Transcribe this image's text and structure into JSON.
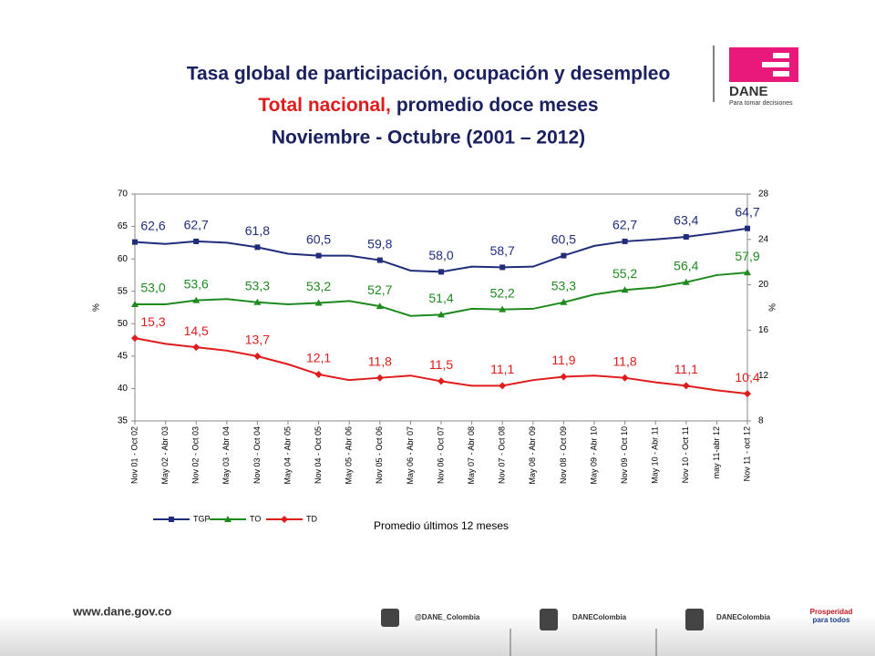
{
  "header": {
    "logo_text": "DANE",
    "logo_tagline": "Para tomar decisiones"
  },
  "chart_data": {
    "type": "line",
    "title": "Tasa global de participación, ocupación y desempleo",
    "subtitle_highlight": "Total nacional,",
    "subtitle": "promedio doce meses",
    "period": "Noviembre - Octubre (2001 – 2012)",
    "categories": [
      "Nov 01 - Oct 02",
      "May 02 - Abr 03",
      "Nov 02 - Oct 03",
      "May 03 - Abr 04",
      "Nov 03 - Oct 04",
      "May 04 - Abr 05",
      "Nov 04 - Oct 05",
      "May 05 - Abr 06",
      "Nov 05 - Oct 06",
      "May 06 - Abr 07",
      "Nov 06 - Oct 07",
      "May 07 - Abr 08",
      "Nov 07 - Oct 08",
      "May 08 - Abr 09",
      "Nov 08 - Oct 09",
      "May 09 - Abr 10",
      "Nov 09 - Oct 10",
      "May 10 - Abr 11",
      "Nov 10 - Oct 11",
      "may 11-abr 12",
      "Nov 11 - oct 12"
    ],
    "xlabel": "Promedio últimos 12 meses",
    "ylabel": "%",
    "y2label": "%",
    "ylim": [
      35,
      70
    ],
    "yticks": [
      35,
      40,
      45,
      50,
      55,
      60,
      65,
      70
    ],
    "y2lim": [
      8,
      28
    ],
    "y2ticks": [
      8,
      12,
      16,
      20,
      24,
      28
    ],
    "series": [
      {
        "name": "TGP",
        "color": "#1f2d7a",
        "marker": "square",
        "values": [
          62.6,
          62.3,
          62.7,
          62.5,
          61.8,
          60.8,
          60.5,
          60.5,
          59.8,
          58.2,
          58.0,
          58.8,
          58.7,
          58.8,
          60.5,
          62.0,
          62.7,
          63.0,
          63.4,
          64.0,
          64.7
        ],
        "value_labels": [
          "62,6",
          null,
          "62,7",
          null,
          "61,8",
          null,
          "60,5",
          null,
          "59,8",
          null,
          "58,0",
          null,
          "58,7",
          null,
          "60,5",
          null,
          "62,7",
          null,
          "63,4",
          null,
          "64,7"
        ]
      },
      {
        "name": "TO",
        "color": "#1e8a1e",
        "marker": "triangle",
        "values": [
          53.0,
          53.0,
          53.6,
          53.8,
          53.3,
          53.0,
          53.2,
          53.5,
          52.7,
          51.2,
          51.4,
          52.3,
          52.2,
          52.3,
          53.3,
          54.5,
          55.2,
          55.6,
          56.4,
          57.5,
          57.9
        ],
        "value_labels": [
          "53,0",
          null,
          "53,6",
          null,
          "53,3",
          null,
          "53,2",
          null,
          "52,7",
          null,
          "51,4",
          null,
          "52,2",
          null,
          "53,3",
          null,
          "55,2",
          null,
          "56,4",
          null,
          "57,9"
        ]
      },
      {
        "name": "TD",
        "color": "#e01b1b",
        "marker": "diamond",
        "axis": "y2",
        "values": [
          15.3,
          14.8,
          14.5,
          14.2,
          13.7,
          13.0,
          12.1,
          11.6,
          11.8,
          12.0,
          11.5,
          11.1,
          11.1,
          11.6,
          11.9,
          12.0,
          11.8,
          11.4,
          11.1,
          10.7,
          10.4
        ],
        "value_labels": [
          "15,3",
          null,
          "14,5",
          null,
          "13,7",
          null,
          "12,1",
          null,
          "11,8",
          null,
          "11,5",
          null,
          "11,1",
          null,
          "11,9",
          null,
          "11,8",
          null,
          "11,1",
          null,
          "10,4"
        ]
      }
    ]
  },
  "footer": {
    "url": "www.dane.gov.co",
    "twitter": "@DANE_Colombia",
    "facebook": "DANEColombia",
    "youtube": "DANEColombia",
    "badge": [
      "Prosperidad",
      "para todos"
    ]
  }
}
